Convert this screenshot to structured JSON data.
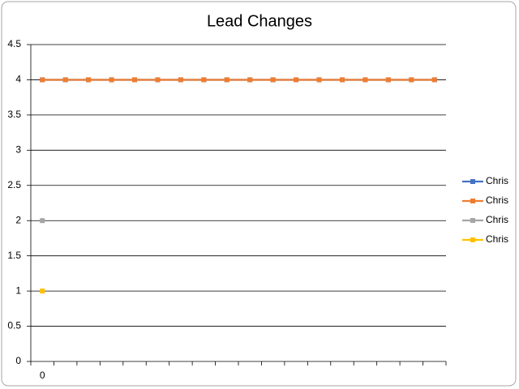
{
  "chart_data": {
    "type": "line",
    "title": "Lead Changes",
    "categories": [
      "0",
      null,
      null,
      null,
      null,
      null,
      null,
      null,
      null,
      null,
      null,
      null,
      null,
      null,
      null,
      null,
      null,
      null
    ],
    "series": [
      {
        "name": "Chris",
        "color": "#4472c4",
        "values": [
          4,
          4,
          4,
          4,
          4,
          4,
          4,
          4,
          4,
          4,
          4,
          4,
          4,
          4,
          4,
          4,
          4,
          4
        ]
      },
      {
        "name": "Chris",
        "color": "#ed7d31",
        "values": [
          4,
          4,
          4,
          4,
          4,
          4,
          4,
          4,
          4,
          4,
          4,
          4,
          4,
          4,
          4,
          4,
          4,
          4
        ]
      },
      {
        "name": "Chris",
        "color": "#a5a5a5",
        "values": [
          2,
          null,
          null,
          null,
          null,
          null,
          null,
          null,
          null,
          null,
          null,
          null,
          null,
          null,
          null,
          null,
          null,
          null
        ]
      },
      {
        "name": "Chris",
        "color": "#ffc000",
        "values": [
          1,
          null,
          null,
          null,
          null,
          null,
          null,
          null,
          null,
          null,
          null,
          null,
          null,
          null,
          null,
          null,
          null,
          null
        ]
      }
    ],
    "ylim": [
      0,
      4.5
    ],
    "yticks": [
      0,
      0.5,
      1,
      1.5,
      2,
      2.5,
      3,
      3.5,
      4,
      4.5
    ],
    "grid": true,
    "legend": "right"
  }
}
